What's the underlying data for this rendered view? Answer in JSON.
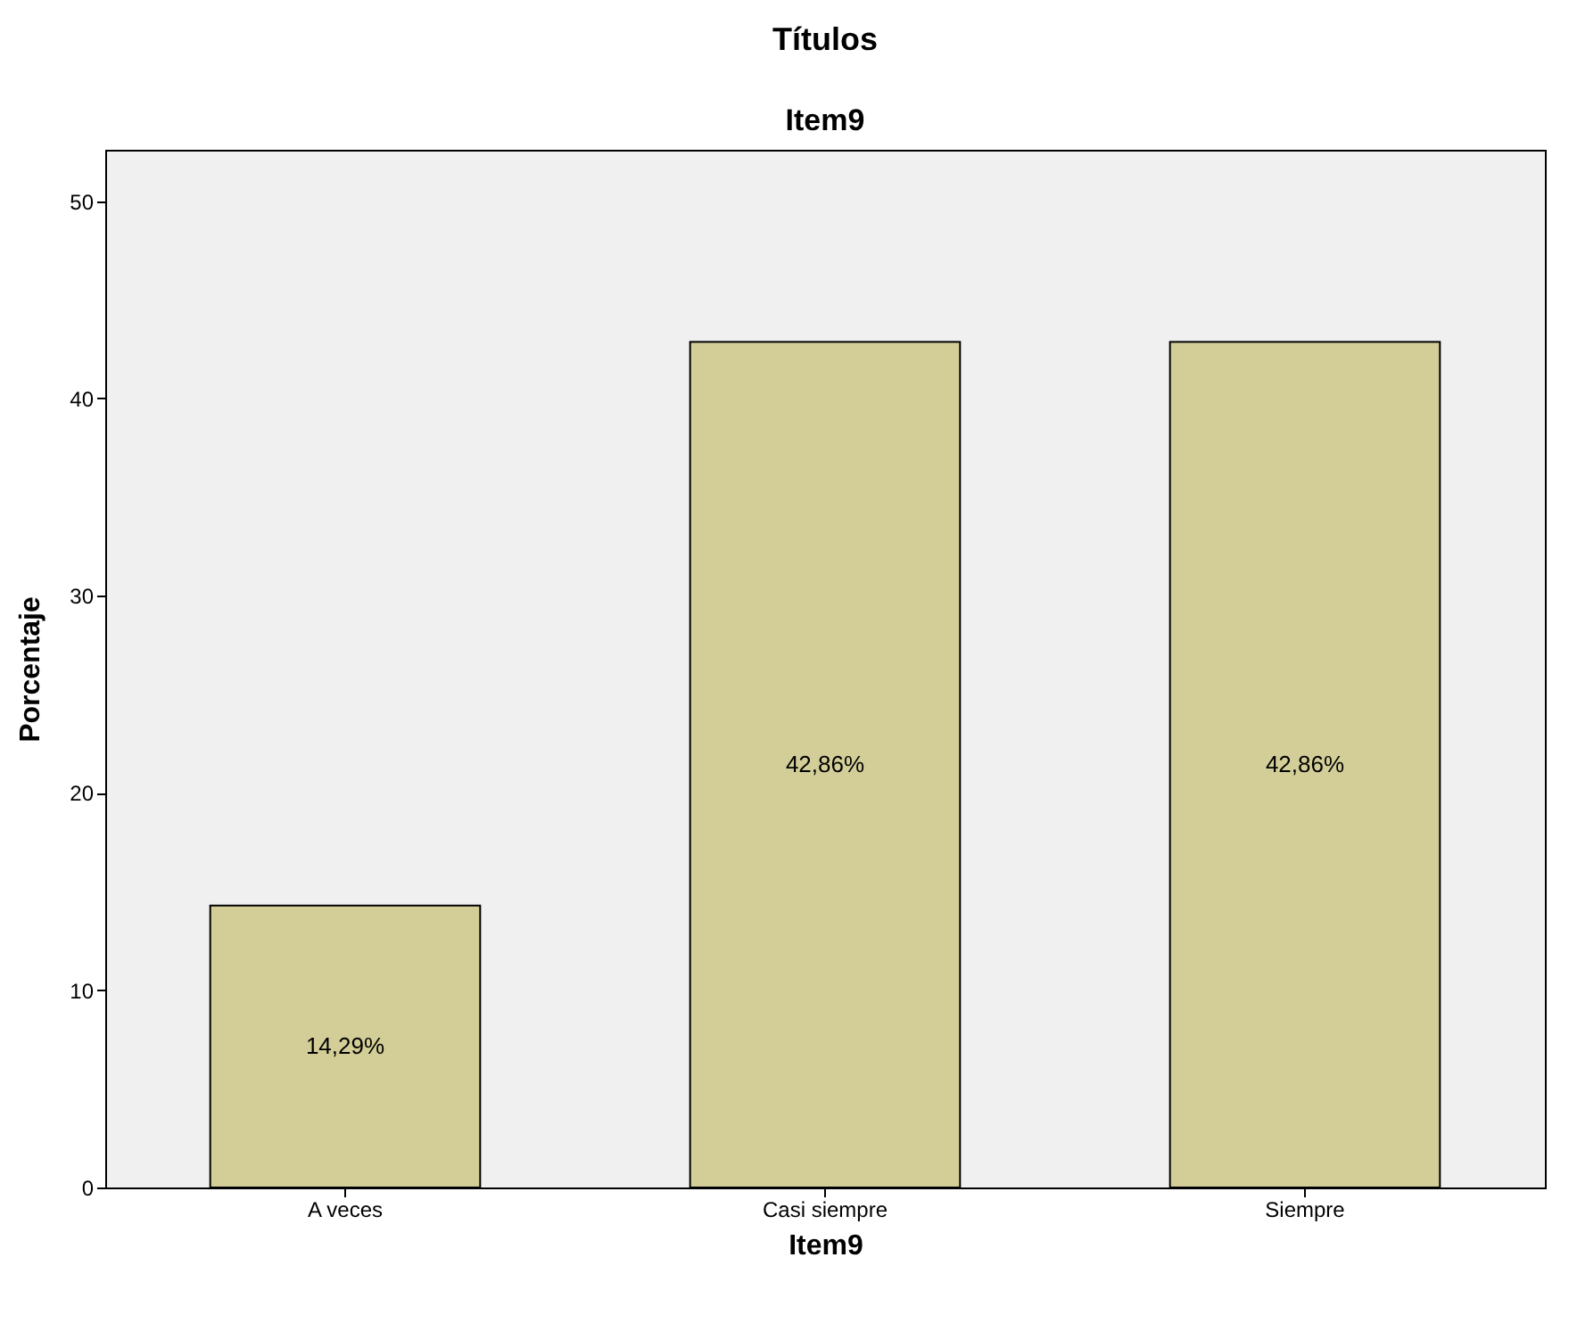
{
  "chart_data": {
    "type": "bar",
    "title": "Títulos",
    "subtitle": "Item9",
    "xlabel": "Item9",
    "ylabel": "Porcentaje",
    "categories": [
      "A veces",
      "Casi siempre",
      "Siempre"
    ],
    "values": [
      14.29,
      42.86,
      42.86
    ],
    "value_labels": [
      "14,29%",
      "42,86%",
      "42,86%"
    ],
    "color": "#d3ce98",
    "ylim": [
      0,
      52.6
    ],
    "yticks": [
      0,
      10,
      20,
      30,
      40,
      50
    ]
  }
}
